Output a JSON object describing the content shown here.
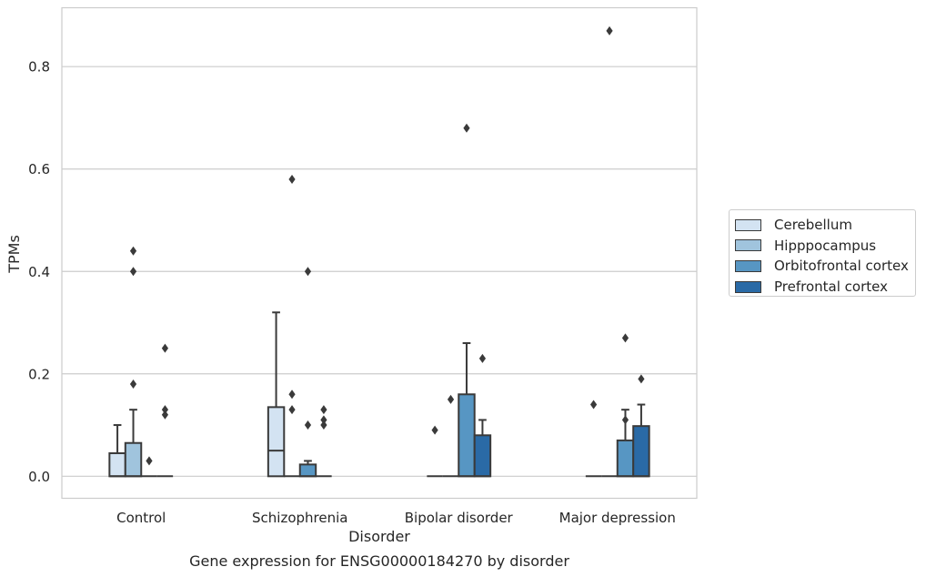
{
  "chart_data": {
    "type": "box",
    "title": "Gene expression for ENSG00000184270 by disorder",
    "xlabel": "Disorder",
    "ylabel": "TPMs",
    "categories": [
      "Control",
      "Schizophrenia",
      "Bipolar disorder",
      "Major depression"
    ],
    "ylim": [
      -0.043,
      0.915
    ],
    "yticks": [
      0.0,
      0.2,
      0.4,
      0.6,
      0.8
    ],
    "ytick_labels": [
      "0.0",
      "0.2",
      "0.4",
      "0.6",
      "0.8"
    ],
    "grid": "horizontal",
    "legend_position": "right",
    "series": [
      {
        "name": "Cerebellum",
        "color": "#d3e3f2",
        "boxes": [
          {
            "q1": 0.0,
            "median": 0.0,
            "q3": 0.045,
            "whisker_low": 0.0,
            "whisker_high": 0.1,
            "outliers": []
          },
          {
            "q1": 0.0,
            "median": 0.05,
            "q3": 0.135,
            "whisker_low": 0.0,
            "whisker_high": 0.32,
            "outliers": []
          },
          {
            "q1": 0.0,
            "median": 0.0,
            "q3": 0.0,
            "whisker_low": 0.0,
            "whisker_high": 0.0,
            "outliers": [
              0.09
            ]
          },
          {
            "q1": 0.0,
            "median": 0.0,
            "q3": 0.0,
            "whisker_low": 0.0,
            "whisker_high": 0.0,
            "outliers": [
              0.14
            ]
          }
        ]
      },
      {
        "name": "Hipppocampus",
        "color": "#a0c4dd",
        "boxes": [
          {
            "q1": 0.0,
            "median": 0.0,
            "q3": 0.065,
            "whisker_low": 0.0,
            "whisker_high": 0.13,
            "outliers": [
              0.18,
              0.4,
              0.44
            ]
          },
          {
            "q1": 0.0,
            "median": 0.0,
            "q3": 0.0,
            "whisker_low": 0.0,
            "whisker_high": 0.0,
            "outliers": [
              0.13,
              0.16,
              0.58
            ]
          },
          {
            "q1": 0.0,
            "median": 0.0,
            "q3": 0.0,
            "whisker_low": 0.0,
            "whisker_high": 0.0,
            "outliers": [
              0.15
            ]
          },
          {
            "q1": 0.0,
            "median": 0.0,
            "q3": 0.0,
            "whisker_low": 0.0,
            "whisker_high": 0.0,
            "outliers": [
              0.87
            ]
          }
        ]
      },
      {
        "name": "Orbitofrontal cortex",
        "color": "#5796c3",
        "boxes": [
          {
            "q1": 0.0,
            "median": 0.0,
            "q3": 0.0,
            "whisker_low": 0.0,
            "whisker_high": 0.0,
            "outliers": [
              0.03
            ]
          },
          {
            "q1": 0.0,
            "median": 0.0,
            "q3": 0.023,
            "whisker_low": 0.0,
            "whisker_high": 0.03,
            "outliers": [
              0.1,
              0.4
            ]
          },
          {
            "q1": 0.0,
            "median": 0.0,
            "q3": 0.16,
            "whisker_low": 0.0,
            "whisker_high": 0.26,
            "outliers": [
              0.68
            ]
          },
          {
            "q1": 0.0,
            "median": 0.0,
            "q3": 0.07,
            "whisker_low": 0.0,
            "whisker_high": 0.13,
            "outliers": [
              0.11,
              0.27
            ]
          }
        ]
      },
      {
        "name": "Prefrontal cortex",
        "color": "#2a6aa6",
        "boxes": [
          {
            "q1": 0.0,
            "median": 0.0,
            "q3": 0.0,
            "whisker_low": 0.0,
            "whisker_high": 0.0,
            "outliers": [
              0.12,
              0.13,
              0.25
            ]
          },
          {
            "q1": 0.0,
            "median": 0.0,
            "q3": 0.0,
            "whisker_low": 0.0,
            "whisker_high": 0.0,
            "outliers": [
              0.1,
              0.11,
              0.13
            ]
          },
          {
            "q1": 0.0,
            "median": 0.0,
            "q3": 0.08,
            "whisker_low": 0.0,
            "whisker_high": 0.11,
            "outliers": [
              0.23
            ]
          },
          {
            "q1": 0.0,
            "median": 0.0,
            "q3": 0.098,
            "whisker_low": 0.0,
            "whisker_high": 0.14,
            "outliers": [
              0.19
            ]
          }
        ]
      }
    ],
    "colors": {
      "grid": "#cccccc",
      "frame": "#cccccc",
      "box_edge": "#3a3a3a",
      "outlier": "#3a3a3a",
      "text": "#262626"
    }
  }
}
